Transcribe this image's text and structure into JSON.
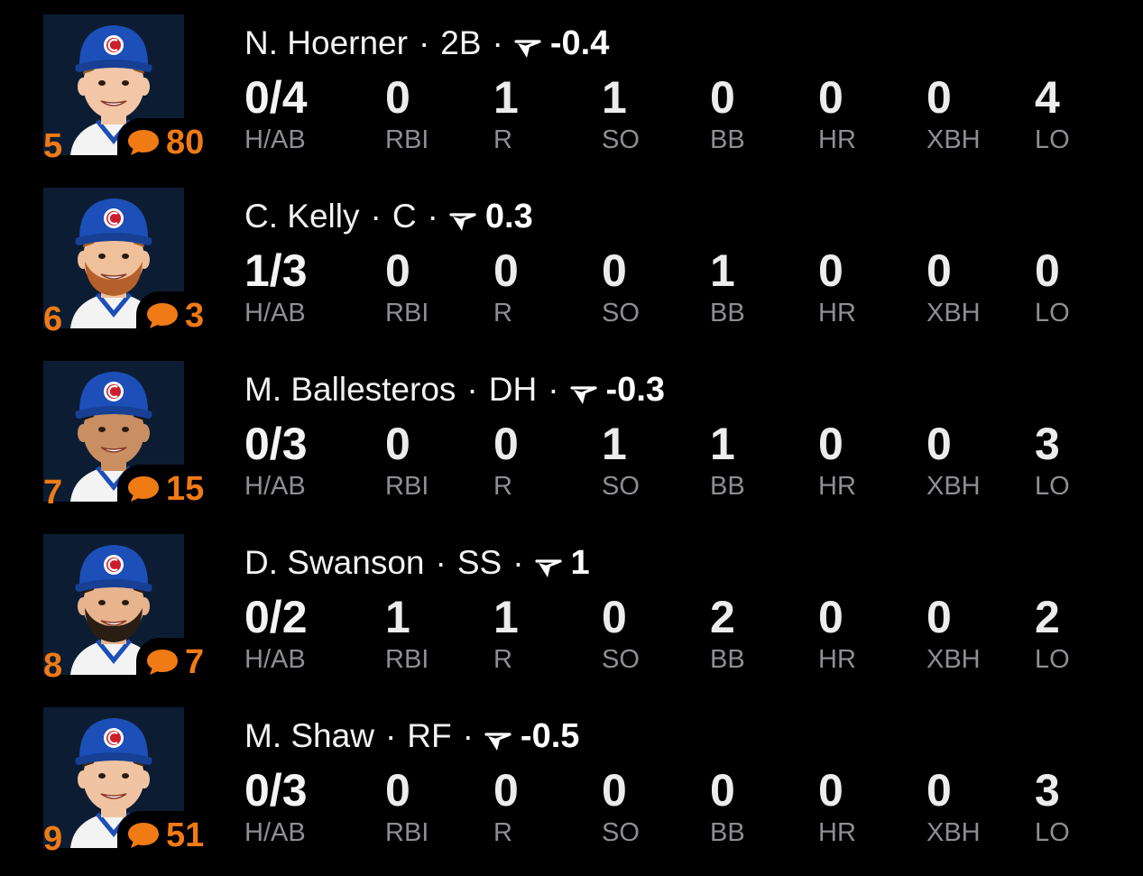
{
  "colors": {
    "background": "#000000",
    "accent": "#f07a14",
    "label": "#8e8e93",
    "cap": "#1c4fb8",
    "logo": "#cc1f2d"
  },
  "stat_labels": [
    "H/AB",
    "RBI",
    "R",
    "SO",
    "BB",
    "HR",
    "XBH",
    "LO"
  ],
  "players": [
    {
      "order": "5",
      "comments": "80",
      "name": "N. Hoerner",
      "position": "2B",
      "trend_icon": "trend-arrow-icon",
      "score": "-0.4",
      "stats": [
        "0/4",
        "0",
        "1",
        "1",
        "0",
        "0",
        "0",
        "4"
      ]
    },
    {
      "order": "6",
      "comments": "3",
      "name": "C. Kelly",
      "position": "C",
      "trend_icon": "trend-arrow-icon",
      "score": "0.3",
      "stats": [
        "1/3",
        "0",
        "0",
        "0",
        "1",
        "0",
        "0",
        "0"
      ]
    },
    {
      "order": "7",
      "comments": "15",
      "name": "M. Ballesteros",
      "position": "DH",
      "trend_icon": "trend-arrow-icon",
      "score": "-0.3",
      "stats": [
        "0/3",
        "0",
        "0",
        "1",
        "1",
        "0",
        "0",
        "3"
      ]
    },
    {
      "order": "8",
      "comments": "7",
      "name": "D. Swanson",
      "position": "SS",
      "trend_icon": "trend-arrow-icon",
      "score": "1",
      "stats": [
        "0/2",
        "1",
        "1",
        "0",
        "2",
        "0",
        "0",
        "2"
      ]
    },
    {
      "order": "9",
      "comments": "51",
      "name": "M. Shaw",
      "position": "RF",
      "trend_icon": "trend-arrow-icon",
      "score": "-0.5",
      "stats": [
        "0/3",
        "0",
        "0",
        "0",
        "0",
        "0",
        "0",
        "3"
      ]
    }
  ]
}
